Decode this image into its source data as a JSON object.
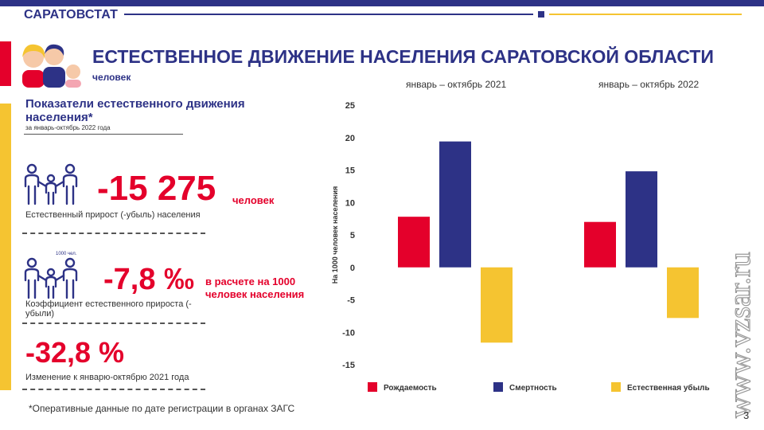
{
  "header": {
    "brand": "САРАТОВСТАТ",
    "title": "ЕСТЕСТВЕННОЕ ДВИЖЕНИЕ НАСЕЛЕНИЯ САРАТОВСКОЙ ОБЛАСТИ",
    "unit": "человек",
    "period_2021": "январь – октябрь 2021",
    "period_2022": "январь – октябрь 2022"
  },
  "panel": {
    "title": "Показатели естественного движения населения*",
    "subtitle": "за январь-октябрь 2022 года",
    "metric1": {
      "value": "-15 275",
      "unit": "человек",
      "label": "Естественный прирост (-убыль) населения"
    },
    "metric2": {
      "icon_note": "1000 чел.",
      "value": "-7,8 ‰",
      "unit": "в расчете на 1000 человек населения",
      "label": "Коэффициент естественного прироста (- убыли)"
    },
    "metric3": {
      "value": "-32,8 %",
      "label": "Изменение к январю-октябрю 2021 года"
    }
  },
  "footnote": "*Оперативные данные по дате регистрации в органах ЗАГС",
  "watermark": "www.vzsar.ru",
  "page_number": "3",
  "colors": {
    "red": "#e4002b",
    "blue": "#2d3286",
    "yellow": "#f5c431"
  },
  "chart_data": {
    "type": "bar",
    "categories": [
      "январь – октябрь 2021",
      "январь – октябрь 2022"
    ],
    "series": [
      {
        "name": "Рождаемость",
        "color": "#e4002b",
        "values": [
          7.8,
          7.0
        ]
      },
      {
        "name": "Смертность",
        "color": "#2d3286",
        "values": [
          19.4,
          14.8
        ]
      },
      {
        "name": "Естественная убыль",
        "color": "#f5c431",
        "values": [
          -11.6,
          -7.8
        ]
      }
    ],
    "ylabel": "На 1000 человек населения",
    "ylim": [
      -15,
      25
    ],
    "yticks": [
      25,
      20,
      15,
      10,
      5,
      0,
      -5,
      -10,
      -15
    ],
    "grid": false,
    "legend": "bottom"
  }
}
